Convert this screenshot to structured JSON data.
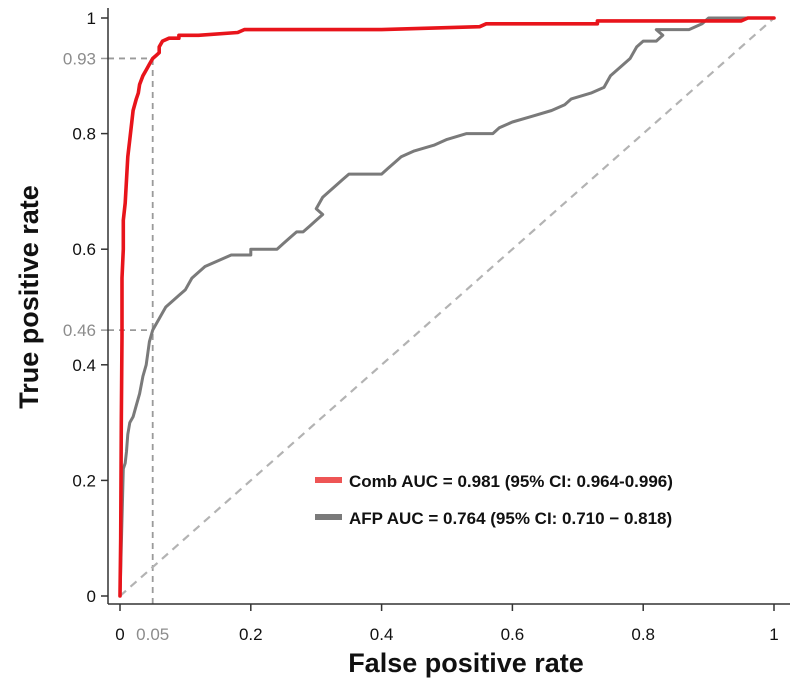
{
  "chart_data": {
    "type": "line",
    "title": "",
    "xlabel": "False positive rate",
    "ylabel": "True positive rate",
    "xlim": [
      0,
      1
    ],
    "ylim": [
      0,
      1
    ],
    "grid": false,
    "legend_position": "bottom-right",
    "x_ticks": [
      {
        "value": 0,
        "label": "0"
      },
      {
        "value": 0.2,
        "label": "0.2"
      },
      {
        "value": 0.4,
        "label": "0.4"
      },
      {
        "value": 0.6,
        "label": "0.6"
      },
      {
        "value": 0.8,
        "label": "0.8"
      },
      {
        "value": 1,
        "label": "1"
      }
    ],
    "y_ticks": [
      {
        "value": 0,
        "label": "0"
      },
      {
        "value": 0.2,
        "label": "0.2"
      },
      {
        "value": 0.4,
        "label": "0.4"
      },
      {
        "value": 0.6,
        "label": "0.6"
      },
      {
        "value": 0.8,
        "label": "0.8"
      },
      {
        "value": 1,
        "label": "1"
      }
    ],
    "reference_lines": [
      {
        "name": "ref-x-0-05",
        "axis": "x",
        "value": 0.05,
        "label": "0.05",
        "to_y": 0.93
      },
      {
        "name": "ref-y-0-93",
        "axis": "y",
        "value": 0.93,
        "label": "0.93",
        "to_x": 0.05
      },
      {
        "name": "ref-y-0-46",
        "axis": "y",
        "value": 0.46,
        "label": "0.46",
        "to_x": 0.05
      }
    ],
    "diagonal": {
      "x": [
        0,
        1
      ],
      "y": [
        0,
        1
      ],
      "color": "#b3b3b3"
    },
    "series": [
      {
        "name": "Comb",
        "legend_label": "Comb AUC = 0.981 (95% CI: 0.964-0.996)",
        "color": "#e8141b",
        "legend_color": "#ee5555",
        "points": [
          [
            0,
            0
          ],
          [
            0.001,
            0.1
          ],
          [
            0.002,
            0.3
          ],
          [
            0.003,
            0.45
          ],
          [
            0.003,
            0.55
          ],
          [
            0.005,
            0.6
          ],
          [
            0.005,
            0.65
          ],
          [
            0.008,
            0.68
          ],
          [
            0.01,
            0.72
          ],
          [
            0.012,
            0.76
          ],
          [
            0.015,
            0.79
          ],
          [
            0.018,
            0.82
          ],
          [
            0.02,
            0.84
          ],
          [
            0.025,
            0.86
          ],
          [
            0.028,
            0.87
          ],
          [
            0.03,
            0.885
          ],
          [
            0.035,
            0.9
          ],
          [
            0.04,
            0.91
          ],
          [
            0.045,
            0.92
          ],
          [
            0.05,
            0.93
          ],
          [
            0.055,
            0.935
          ],
          [
            0.06,
            0.94
          ],
          [
            0.06,
            0.95
          ],
          [
            0.065,
            0.96
          ],
          [
            0.075,
            0.965
          ],
          [
            0.09,
            0.965
          ],
          [
            0.09,
            0.97
          ],
          [
            0.12,
            0.97
          ],
          [
            0.18,
            0.975
          ],
          [
            0.19,
            0.98
          ],
          [
            0.3,
            0.98
          ],
          [
            0.4,
            0.98
          ],
          [
            0.55,
            0.985
          ],
          [
            0.56,
            0.99
          ],
          [
            0.73,
            0.99
          ],
          [
            0.73,
            0.995
          ],
          [
            0.95,
            0.995
          ],
          [
            0.96,
            1
          ],
          [
            1,
            1
          ]
        ]
      },
      {
        "name": "AFP",
        "legend_label": "AFP AUC = 0.764 (95% CI: 0.710 − 0.818)",
        "color": "#7a7a7a",
        "legend_color": "#7a7a7a",
        "points": [
          [
            0,
            0
          ],
          [
            0.005,
            0.22
          ],
          [
            0.008,
            0.23
          ],
          [
            0.01,
            0.25
          ],
          [
            0.012,
            0.28
          ],
          [
            0.015,
            0.3
          ],
          [
            0.02,
            0.31
          ],
          [
            0.025,
            0.33
          ],
          [
            0.03,
            0.35
          ],
          [
            0.035,
            0.38
          ],
          [
            0.04,
            0.4
          ],
          [
            0.045,
            0.44
          ],
          [
            0.05,
            0.46
          ],
          [
            0.055,
            0.47
          ],
          [
            0.06,
            0.48
          ],
          [
            0.065,
            0.49
          ],
          [
            0.07,
            0.5
          ],
          [
            0.08,
            0.51
          ],
          [
            0.09,
            0.52
          ],
          [
            0.1,
            0.53
          ],
          [
            0.11,
            0.55
          ],
          [
            0.12,
            0.56
          ],
          [
            0.13,
            0.57
          ],
          [
            0.15,
            0.58
          ],
          [
            0.17,
            0.59
          ],
          [
            0.2,
            0.59
          ],
          [
            0.2,
            0.6
          ],
          [
            0.24,
            0.6
          ],
          [
            0.25,
            0.61
          ],
          [
            0.26,
            0.62
          ],
          [
            0.27,
            0.63
          ],
          [
            0.28,
            0.63
          ],
          [
            0.29,
            0.64
          ],
          [
            0.3,
            0.65
          ],
          [
            0.31,
            0.66
          ],
          [
            0.3,
            0.67
          ],
          [
            0.31,
            0.69
          ],
          [
            0.32,
            0.7
          ],
          [
            0.33,
            0.71
          ],
          [
            0.34,
            0.72
          ],
          [
            0.35,
            0.73
          ],
          [
            0.4,
            0.73
          ],
          [
            0.41,
            0.74
          ],
          [
            0.42,
            0.75
          ],
          [
            0.43,
            0.76
          ],
          [
            0.45,
            0.77
          ],
          [
            0.48,
            0.78
          ],
          [
            0.5,
            0.79
          ],
          [
            0.53,
            0.8
          ],
          [
            0.57,
            0.8
          ],
          [
            0.58,
            0.81
          ],
          [
            0.6,
            0.82
          ],
          [
            0.63,
            0.83
          ],
          [
            0.66,
            0.84
          ],
          [
            0.68,
            0.85
          ],
          [
            0.69,
            0.86
          ],
          [
            0.72,
            0.87
          ],
          [
            0.74,
            0.88
          ],
          [
            0.745,
            0.89
          ],
          [
            0.75,
            0.9
          ],
          [
            0.77,
            0.92
          ],
          [
            0.78,
            0.93
          ],
          [
            0.79,
            0.95
          ],
          [
            0.8,
            0.96
          ],
          [
            0.82,
            0.96
          ],
          [
            0.83,
            0.97
          ],
          [
            0.82,
            0.98
          ],
          [
            0.87,
            0.98
          ],
          [
            0.89,
            0.99
          ],
          [
            0.9,
            1
          ],
          [
            1,
            1
          ]
        ]
      }
    ]
  }
}
